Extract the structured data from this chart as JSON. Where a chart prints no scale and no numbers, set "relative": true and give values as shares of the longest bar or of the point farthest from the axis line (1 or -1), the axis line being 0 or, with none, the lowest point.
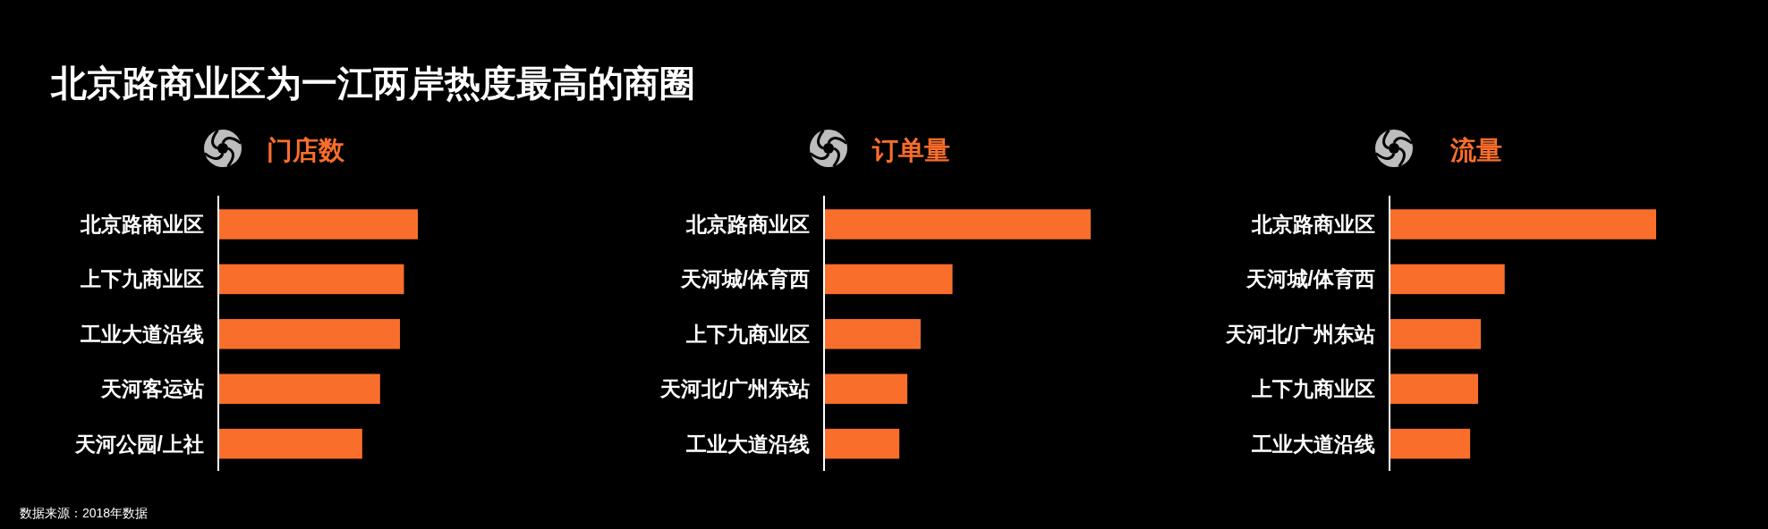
{
  "chart_data": [
    {
      "type": "other",
      "title": "北京路商业区为一江两岸热度最高的商圈",
      "annotations": [
        "数据来源：2018年数据"
      ]
    },
    {
      "type": "bar",
      "orientation": "horizontal",
      "relative": true,
      "title": "门店数",
      "color": "#fa6e2b",
      "categories": [
        "北京路商业区",
        "上下九商业区",
        "工业大道沿线",
        "天河客运站",
        "天河公园/上社"
      ],
      "values": [
        1,
        0.93,
        0.91,
        0.81,
        0.72
      ]
    },
    {
      "type": "bar",
      "orientation": "horizontal",
      "relative": true,
      "title": "订单量",
      "color": "#fa6e2b",
      "categories": [
        "北京路商业区",
        "天河城/体育西",
        "上下九商业区",
        "天河北/广州东站",
        "工业大道沿线"
      ],
      "values": [
        1,
        0.48,
        0.36,
        0.31,
        0.28
      ]
    },
    {
      "type": "bar",
      "orientation": "horizontal",
      "relative": true,
      "title": "流量",
      "color": "#fa6e2b",
      "categories": [
        "北京路商业区",
        "天河城/体育西",
        "天河北/广州东站",
        "上下九商业区",
        "工业大道沿线"
      ],
      "values": [
        1,
        0.43,
        0.34,
        0.33,
        0.3
      ]
    }
  ]
}
